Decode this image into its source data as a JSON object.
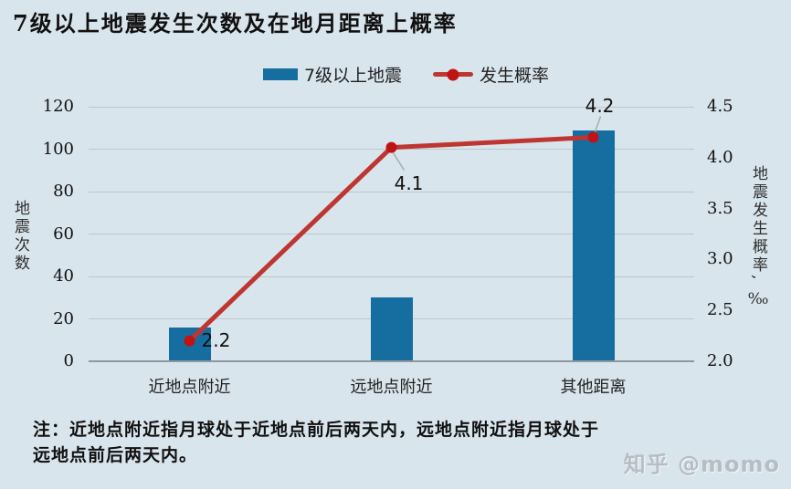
{
  "legend": {
    "bar_label": "7级以上地震",
    "line_label": "发生概率"
  },
  "note": {
    "line1": "注：近地点附近指月球处于近地点前后两天内，远地点附近指月球处于",
    "line2": "远地点前后两天内。"
  },
  "watermark": "知乎 @momo",
  "colors": {
    "background": "#d9e5ec",
    "bar": "#166da0",
    "line": "#be3631",
    "marker": "#c01414",
    "grid": "#bcc7cc",
    "axis_line": "#8e989e",
    "leader": "#a8abad"
  },
  "chart_data": {
    "type": "combo",
    "title": "7级以上地震发生次数及在地月距离上概率",
    "categories": [
      "近地点附近",
      "远地点附近",
      "其他距离"
    ],
    "series": [
      {
        "name": "7级以上地震",
        "type": "bar",
        "axis": "left",
        "color": "#166da0",
        "values": [
          16,
          30,
          109
        ]
      },
      {
        "name": "发生概率",
        "type": "line",
        "axis": "right",
        "color": "#be3631",
        "marker_color": "#c01414",
        "values": [
          2.2,
          4.1,
          4.2
        ],
        "labels": [
          "2.2",
          "4.1",
          "4.2"
        ],
        "label_placements": [
          "right",
          "below-right",
          "above"
        ]
      }
    ],
    "left_axis": {
      "label": "地震次数",
      "min": 0,
      "max": 120,
      "tick_values": [
        0,
        20,
        40,
        60,
        80,
        100,
        120
      ],
      "ticks": [
        "0",
        "20",
        "40",
        "60",
        "80",
        "100",
        "120"
      ]
    },
    "right_axis": {
      "label": "地震发生概率, ‰",
      "min": 2.0,
      "max": 4.5,
      "tick_values": [
        2.0,
        2.5,
        3.0,
        3.5,
        4.0,
        4.5
      ],
      "ticks": [
        "2.0",
        "2.5",
        "3.0",
        "3.5",
        "4.0",
        "4.5"
      ]
    },
    "grid": true,
    "legend_position": "top"
  }
}
